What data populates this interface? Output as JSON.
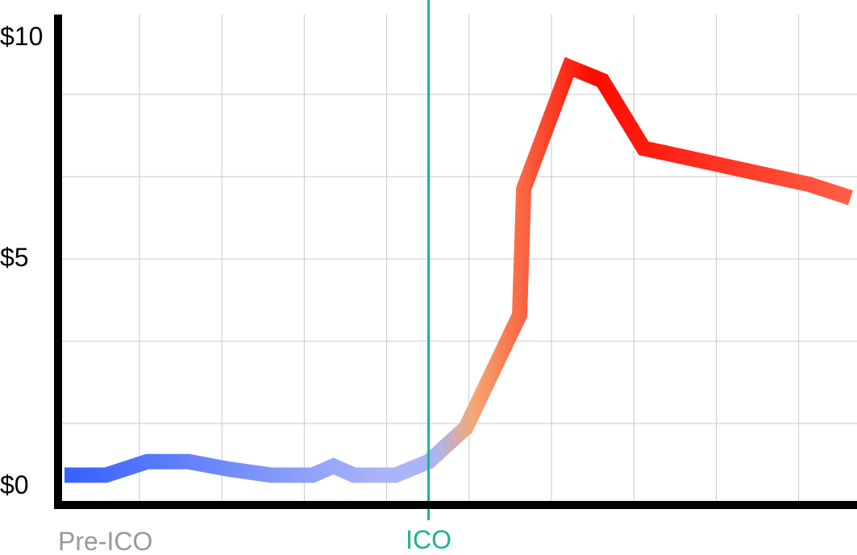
{
  "chart_data": {
    "type": "line",
    "title": "",
    "xlabel": "",
    "ylabel": "",
    "ylim": [
      0,
      10
    ],
    "xlim": [
      0,
      19
    ],
    "grid": true,
    "y_ticks": [
      {
        "value": 0,
        "label": "$0"
      },
      {
        "value": 5,
        "label": "$5"
      },
      {
        "value": 10,
        "label": "$10"
      }
    ],
    "series": [
      {
        "x": [
          0,
          1,
          2,
          3,
          4,
          5,
          6,
          6.5,
          7,
          8,
          8.8,
          9.7,
          11,
          11.1,
          12.2,
          13,
          14,
          15,
          16,
          17,
          18,
          19
        ],
        "values": [
          0.25,
          0.25,
          0.55,
          0.55,
          0.38,
          0.25,
          0.25,
          0.45,
          0.25,
          0.25,
          0.55,
          1.3,
          3.8,
          6.6,
          9.3,
          9.0,
          7.5,
          7.3,
          7.1,
          6.9,
          6.7,
          6.4
        ]
      }
    ],
    "annotations": {
      "pre_ico_label": "Pre-ICO",
      "ico_label": "ICO",
      "ico_x": 8.8
    },
    "colors": {
      "pre_ico": "#3660ff",
      "ico_transition": "#a9b4f8",
      "post_ico_mid": "#f5a873",
      "peak": "#ff0a00",
      "end": "#ff5f47",
      "ico_line": "#1ab394",
      "pre_ico_text": "#999999",
      "grid": "#c8c8c8",
      "axis": "#000000"
    }
  }
}
